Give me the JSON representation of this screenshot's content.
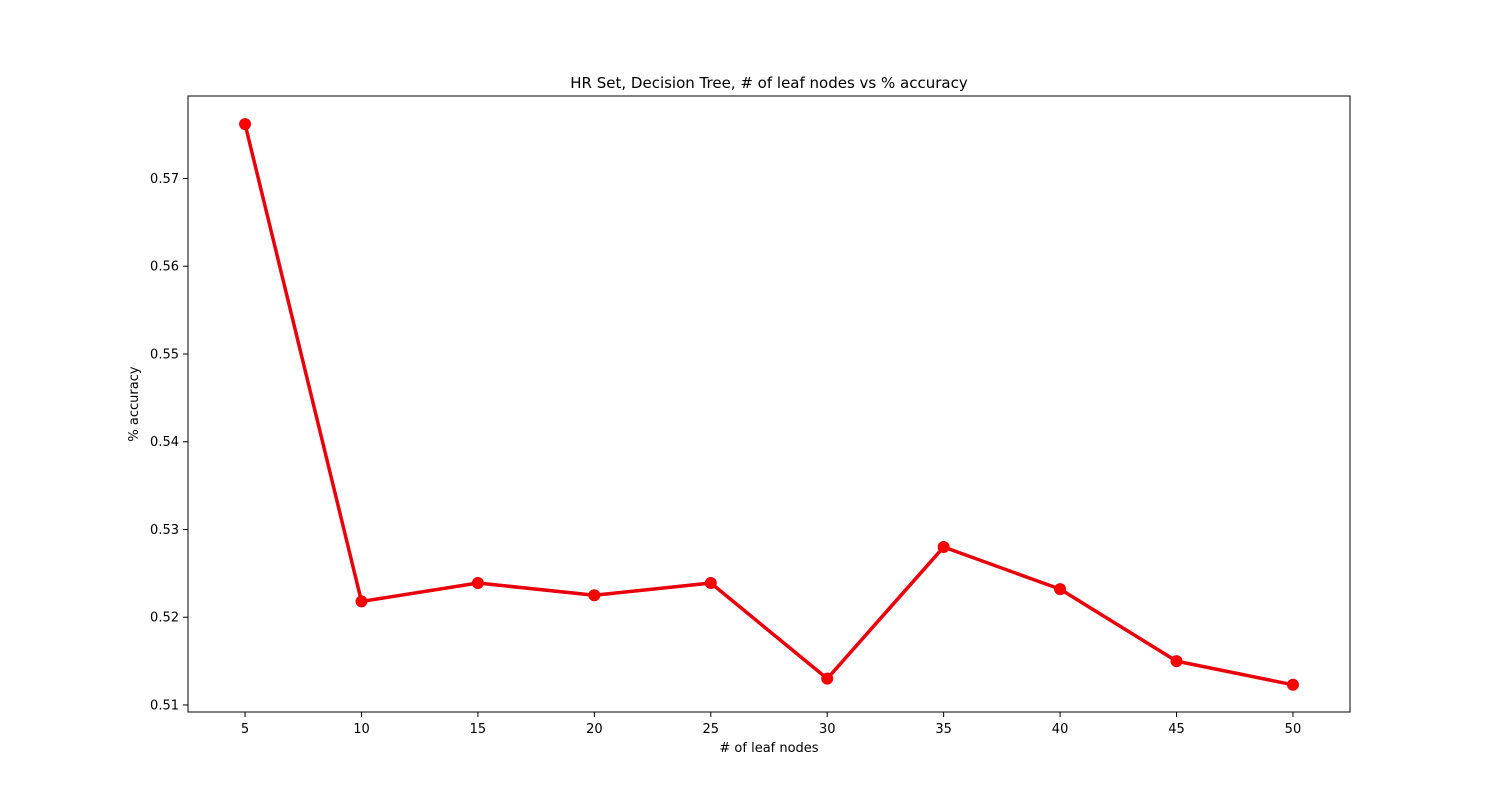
{
  "chart_data": {
    "type": "line",
    "title": "HR Set, Decision Tree, # of leaf nodes vs % accuracy",
    "xlabel": "# of leaf nodes",
    "ylabel": "% accuracy",
    "x": [
      5,
      10,
      15,
      20,
      25,
      30,
      35,
      40,
      45,
      50
    ],
    "series": [
      {
        "values": [
          0.5762,
          0.5218,
          0.5239,
          0.5225,
          0.5239,
          0.513,
          0.528,
          0.5232,
          0.515,
          0.5123
        ],
        "color": "#e8000b",
        "marker_color": "#ff0000"
      }
    ],
    "xlim": [
      2.55,
      52.45
    ],
    "ylim": [
      0.5092,
      0.5794
    ],
    "xticks": [
      5,
      10,
      15,
      20,
      25,
      30,
      35,
      40,
      45,
      50
    ],
    "yticks": [
      0.51,
      0.52,
      0.53,
      0.54,
      0.55,
      0.56,
      0.57
    ],
    "ytick_labels": [
      "0.51",
      "0.52",
      "0.53",
      "0.54",
      "0.55",
      "0.56",
      "0.57"
    ],
    "grid": false,
    "legend": "none"
  }
}
